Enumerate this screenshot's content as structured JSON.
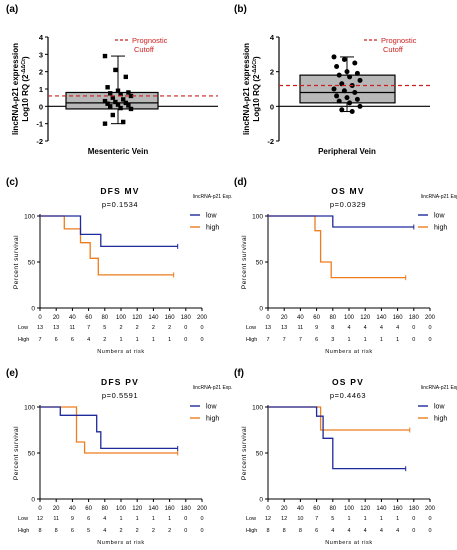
{
  "figure": {
    "panel_labels": [
      "(a)",
      "(b)",
      "(c)",
      "(d)",
      "(e)",
      "(f)"
    ]
  },
  "colors": {
    "low": "#1f2a9c",
    "high": "#ee7d1d",
    "cutoff": "#cc1f1f",
    "box_fill": "#b8b8b8"
  },
  "chart_data": [
    {
      "panel": "(a)",
      "type": "box",
      "ylabel_line1": "lincRNA-p21 expression",
      "ylabel_line2": "Log10 RQ (2",
      "ylabel_sup": "-ΔΔCt",
      "ylabel_close": ")",
      "xlabel": "Mesenteric Vein",
      "ylim": [
        -2,
        4
      ],
      "yticks": [
        "-2",
        "-1",
        "0",
        "1",
        "2",
        "3",
        "4"
      ],
      "legend": "Prognostic Cutoff",
      "cutoff": 0.6,
      "box": {
        "min": -1.0,
        "q1": -0.15,
        "median": 0.2,
        "q3": 0.8,
        "max": 2.9
      },
      "points": [
        2.9,
        2.1,
        1.7,
        1.1,
        0.9,
        0.8,
        0.75,
        0.7,
        0.6,
        0.5,
        0.4,
        0.3,
        0.25,
        0.2,
        0.15,
        0.1,
        0.05,
        0.0,
        -0.1,
        -0.15,
        -0.5,
        -0.9,
        -1.0
      ]
    },
    {
      "panel": "(b)",
      "type": "box",
      "ylabel_line1": "lincRNA-p21 expression",
      "ylabel_line2": "Log10 RQ (2",
      "ylabel_sup": "-ΔΔCt",
      "ylabel_close": ")",
      "xlabel": "Peripheral Vein",
      "ylim": [
        -2,
        4
      ],
      "yticks": [
        "-2",
        "0",
        "2",
        "4"
      ],
      "legend": "Prognostic Cutoff",
      "cutoff": 1.2,
      "box": {
        "min": -0.3,
        "q1": 0.2,
        "median": 0.8,
        "q3": 1.8,
        "max": 2.85
      },
      "points": [
        2.85,
        2.7,
        2.5,
        2.3,
        2.0,
        1.9,
        1.8,
        1.7,
        1.5,
        1.3,
        1.2,
        1.0,
        0.9,
        0.8,
        0.6,
        0.5,
        0.4,
        0.3,
        0.2,
        0.0,
        -0.2,
        -0.3
      ]
    },
    {
      "panel": "(c)",
      "type": "line",
      "title": "DFS MV",
      "pvalue": "p=0.1534",
      "ylabel": "Percent survival",
      "xlabel": "Numbers at risk",
      "legend_title": "lincRNA-p21 Exp.",
      "xlim": [
        0,
        200
      ],
      "ylim": [
        0,
        100
      ],
      "xticks": [
        "0",
        "20",
        "40",
        "60",
        "80",
        "100",
        "120",
        "140",
        "160",
        "180",
        "200"
      ],
      "yticks": [
        "0",
        "50",
        "100"
      ],
      "series": [
        {
          "name": "low",
          "points": [
            [
              0,
              100
            ],
            [
              50,
              100
            ],
            [
              50,
              80
            ],
            [
              75,
              80
            ],
            [
              75,
              67
            ],
            [
              170,
              67
            ]
          ]
        },
        {
          "name": "high",
          "points": [
            [
              0,
              100
            ],
            [
              30,
              100
            ],
            [
              30,
              86
            ],
            [
              50,
              86
            ],
            [
              50,
              71
            ],
            [
              62,
              71
            ],
            [
              62,
              54
            ],
            [
              72,
              54
            ],
            [
              72,
              36
            ],
            [
              165,
              36
            ]
          ]
        }
      ],
      "risk": {
        "low_label": "Low",
        "high_label": "High",
        "low": [
          "13",
          "13",
          "11",
          "7",
          "5",
          "2",
          "2",
          "2",
          "2",
          "0",
          "0"
        ],
        "high": [
          "7",
          "6",
          "6",
          "4",
          "2",
          "1",
          "1",
          "1",
          "1",
          "0",
          "0"
        ]
      }
    },
    {
      "panel": "(d)",
      "type": "line",
      "title": "OS MV",
      "pvalue": "p=0.0329",
      "ylabel": "Percent survival",
      "xlabel": "Numbers at risk",
      "legend_title": "lincRNA-p21 Exp.",
      "xlim": [
        0,
        200
      ],
      "ylim": [
        0,
        100
      ],
      "xticks": [
        "0",
        "20",
        "40",
        "60",
        "80",
        "100",
        "120",
        "140",
        "160",
        "180",
        "200"
      ],
      "yticks": [
        "0",
        "50",
        "100"
      ],
      "series": [
        {
          "name": "low",
          "points": [
            [
              0,
              100
            ],
            [
              80,
              100
            ],
            [
              80,
              88
            ],
            [
              180,
              88
            ]
          ]
        },
        {
          "name": "high",
          "points": [
            [
              0,
              100
            ],
            [
              58,
              100
            ],
            [
              58,
              84
            ],
            [
              65,
              84
            ],
            [
              65,
              50
            ],
            [
              78,
              50
            ],
            [
              78,
              33
            ],
            [
              170,
              33
            ]
          ]
        }
      ],
      "risk": {
        "low_label": "Low",
        "high_label": "High",
        "low": [
          "13",
          "13",
          "11",
          "9",
          "8",
          "4",
          "4",
          "4",
          "4",
          "0",
          "0"
        ],
        "high": [
          "7",
          "7",
          "7",
          "6",
          "3",
          "1",
          "1",
          "1",
          "1",
          "0",
          "0"
        ]
      }
    },
    {
      "panel": "(e)",
      "type": "line",
      "title": "DFS PV",
      "pvalue": "p=0.5591",
      "ylabel": "Percent survival",
      "xlabel": "Numbers at risk",
      "legend_title": "lincRNA-p21 Exp.",
      "xlim": [
        0,
        200
      ],
      "ylim": [
        0,
        100
      ],
      "xticks": [
        "0",
        "20",
        "40",
        "60",
        "80",
        "100",
        "120",
        "140",
        "160",
        "180",
        "200"
      ],
      "yticks": [
        "0",
        "50",
        "100"
      ],
      "series": [
        {
          "name": "low",
          "points": [
            [
              0,
              100
            ],
            [
              25,
              100
            ],
            [
              25,
              91
            ],
            [
              70,
              91
            ],
            [
              70,
              73
            ],
            [
              75,
              73
            ],
            [
              75,
              55
            ],
            [
              170,
              55
            ]
          ]
        },
        {
          "name": "high",
          "points": [
            [
              0,
              100
            ],
            [
              45,
              100
            ],
            [
              45,
              62
            ],
            [
              55,
              62
            ],
            [
              55,
              50
            ],
            [
              170,
              50
            ]
          ]
        }
      ],
      "risk": {
        "low_label": "Low",
        "high_label": "High",
        "low": [
          "12",
          "11",
          "9",
          "6",
          "4",
          "1",
          "1",
          "1",
          "1",
          "0",
          "0"
        ],
        "high": [
          "8",
          "8",
          "6",
          "5",
          "4",
          "2",
          "2",
          "2",
          "2",
          "0",
          "0"
        ]
      }
    },
    {
      "panel": "(f)",
      "type": "line",
      "title": "OS PV",
      "pvalue": "p=0.4463",
      "ylabel": "Percent survival",
      "xlabel": "Numbers at risk",
      "legend_title": "lincRNA-p21 Exp.",
      "xlim": [
        0,
        200
      ],
      "ylim": [
        0,
        100
      ],
      "xticks": [
        "0",
        "20",
        "40",
        "60",
        "80",
        "100",
        "120",
        "140",
        "160",
        "180",
        "200"
      ],
      "yticks": [
        "0",
        "50",
        "100"
      ],
      "series": [
        {
          "name": "low",
          "points": [
            [
              0,
              100
            ],
            [
              60,
              100
            ],
            [
              60,
              90
            ],
            [
              68,
              90
            ],
            [
              68,
              66
            ],
            [
              80,
              66
            ],
            [
              80,
              33
            ],
            [
              170,
              33
            ]
          ]
        },
        {
          "name": "high",
          "points": [
            [
              0,
              100
            ],
            [
              65,
              100
            ],
            [
              65,
              75
            ],
            [
              175,
              75
            ]
          ]
        }
      ],
      "risk": {
        "low_label": "Low",
        "high_label": "High",
        "low": [
          "12",
          "12",
          "10",
          "7",
          "5",
          "1",
          "1",
          "1",
          "1",
          "0",
          "0"
        ],
        "high": [
          "8",
          "8",
          "8",
          "6",
          "4",
          "4",
          "4",
          "4",
          "4",
          "0",
          "0"
        ]
      }
    }
  ]
}
